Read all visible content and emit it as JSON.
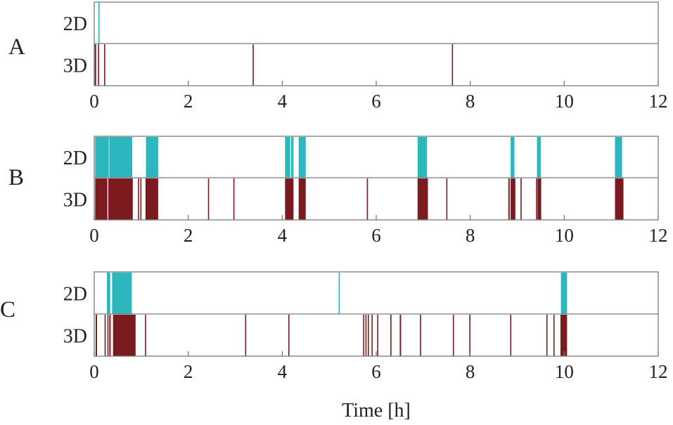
{
  "colors": {
    "2D": "#2cb6bd",
    "3D": "#7b1a1f",
    "frame": "#7a7a7a",
    "background": "#ffffff"
  },
  "chart_data": {
    "type": "event-raster",
    "xlabel": "Time [h]",
    "xlim": [
      0,
      12
    ],
    "xticks": [
      0,
      2,
      4,
      6,
      8,
      10,
      12
    ],
    "grid": false,
    "panels": [
      {
        "label": "A",
        "rows": [
          {
            "name": "2D",
            "intervals": [
              [
                0.09,
                0.11
              ]
            ]
          },
          {
            "name": "3D",
            "intervals": [
              [
                0.01,
                0.04
              ],
              [
                0.08,
                0.1
              ],
              [
                0.21,
                0.23
              ],
              [
                3.37,
                3.39
              ],
              [
                7.61,
                7.63
              ]
            ]
          }
        ]
      },
      {
        "label": "B",
        "rows": [
          {
            "name": "2D",
            "intervals": [
              [
                0.02,
                0.31
              ],
              [
                0.32,
                0.81
              ],
              [
                1.1,
                1.36
              ],
              [
                4.06,
                4.17
              ],
              [
                4.19,
                4.24
              ],
              [
                4.35,
                4.5
              ],
              [
                6.88,
                7.08
              ],
              [
                8.86,
                8.94
              ],
              [
                9.42,
                9.5
              ],
              [
                11.08,
                11.23
              ]
            ]
          },
          {
            "name": "3D",
            "intervals": [
              [
                0.02,
                0.28
              ],
              [
                0.3,
                0.82
              ],
              [
                0.93,
                0.95
              ],
              [
                0.98,
                1.0
              ],
              [
                1.09,
                1.36
              ],
              [
                2.42,
                2.44
              ],
              [
                2.96,
                2.98
              ],
              [
                4.06,
                4.24
              ],
              [
                4.35,
                4.5
              ],
              [
                5.8,
                5.82
              ],
              [
                6.88,
                7.1
              ],
              [
                7.49,
                7.51
              ],
              [
                8.81,
                8.84
              ],
              [
                8.86,
                8.96
              ],
              [
                9.07,
                9.09
              ],
              [
                9.4,
                9.42
              ],
              [
                9.43,
                9.51
              ],
              [
                11.08,
                11.26
              ]
            ]
          }
        ]
      },
      {
        "label": "C",
        "rows": [
          {
            "name": "2D",
            "intervals": [
              [
                0.27,
                0.34
              ],
              [
                0.38,
                0.8
              ],
              [
                5.2,
                5.22
              ],
              [
                9.93,
                10.06
              ]
            ]
          },
          {
            "name": "3D",
            "intervals": [
              [
                0.03,
                0.06
              ],
              [
                0.22,
                0.24
              ],
              [
                0.28,
                0.3
              ],
              [
                0.32,
                0.35
              ],
              [
                0.4,
                0.88
              ],
              [
                1.08,
                1.1
              ],
              [
                3.21,
                3.23
              ],
              [
                4.13,
                4.15
              ],
              [
                5.72,
                5.74
              ],
              [
                5.77,
                5.79
              ],
              [
                5.82,
                5.84
              ],
              [
                5.9,
                5.92
              ],
              [
                6.02,
                6.04
              ],
              [
                6.3,
                6.32
              ],
              [
                6.5,
                6.53
              ],
              [
                6.93,
                6.95
              ],
              [
                7.63,
                7.65
              ],
              [
                7.98,
                8.0
              ],
              [
                8.85,
                8.87
              ],
              [
                9.62,
                9.64
              ],
              [
                9.77,
                9.79
              ],
              [
                9.92,
                10.06
              ]
            ]
          }
        ]
      }
    ]
  }
}
